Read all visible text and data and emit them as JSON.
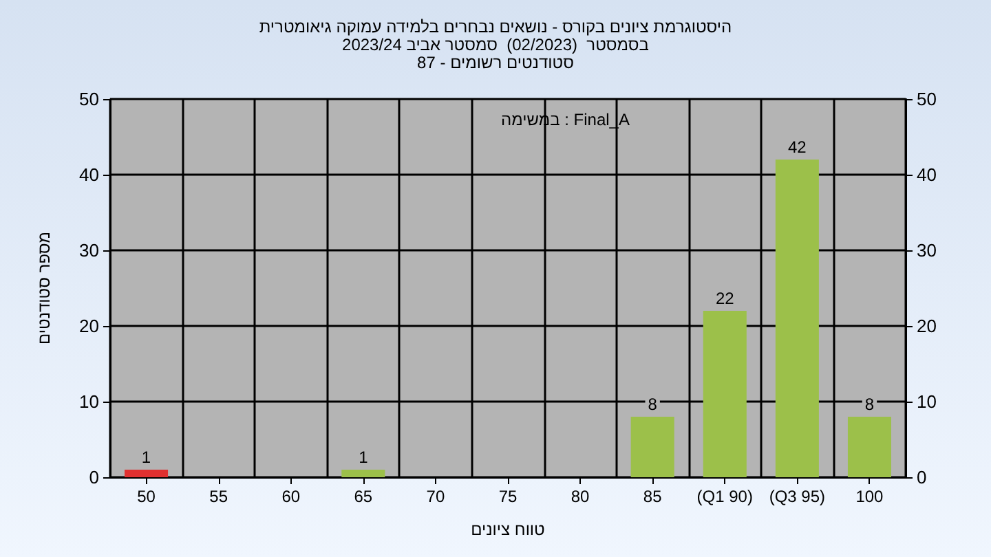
{
  "chart_data": {
    "type": "bar",
    "title": "היסטוגרמת ציונים בקורס - נושאים נבחרים בלמידה עמוקה גיאומטרית\nבסמסטר  (02/2023)  סמסטר אביב 2023/24\nסטודנטים רשומים - 87",
    "xlabel": "טווח ציונים",
    "ylabel": "מספר סטודנטים",
    "annotations": [
      "במשימה : Final_A"
    ],
    "categories": [
      "50",
      "55",
      "60",
      "65",
      "70",
      "75",
      "80",
      "85",
      "(Q1 90)",
      "(Q3 95)",
      "100"
    ],
    "values": [
      1,
      0,
      0,
      1,
      0,
      0,
      0,
      8,
      22,
      42,
      8
    ],
    "colors": [
      "#e03030",
      "#9cc04a",
      "#9cc04a",
      "#9cc04a",
      "#9cc04a",
      "#9cc04a",
      "#9cc04a",
      "#9cc04a",
      "#9cc04a",
      "#9cc04a",
      "#9cc04a"
    ],
    "value_labels": [
      "1",
      null,
      null,
      "1",
      null,
      null,
      null,
      "8",
      "22",
      "42",
      "8"
    ],
    "ylim": [
      0,
      50
    ],
    "yticks": [
      0,
      10,
      20,
      30,
      40,
      50
    ],
    "y2lim": [
      0,
      50
    ],
    "y2ticks": [
      0,
      10,
      20,
      30,
      40,
      50
    ],
    "grid": true
  }
}
